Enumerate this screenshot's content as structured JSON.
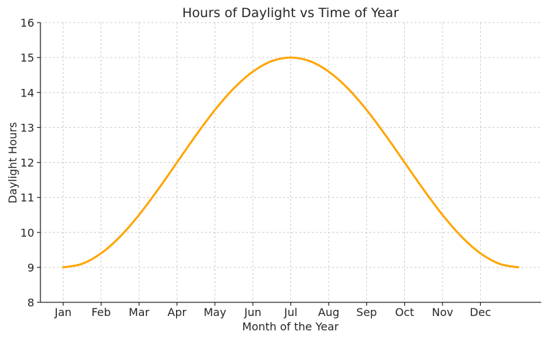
{
  "chart_data": {
    "type": "line",
    "title": "Hours of Daylight vs Time of Year",
    "xlabel": "Month of the Year",
    "ylabel": "Daylight Hours",
    "xlim": [
      0.4,
      13.6
    ],
    "ylim": [
      8,
      16
    ],
    "x_ticks": [
      1,
      2,
      3,
      4,
      5,
      6,
      7,
      8,
      9,
      10,
      11,
      12
    ],
    "x_tick_labels": [
      "Jan",
      "Feb",
      "Mar",
      "Apr",
      "May",
      "Jun",
      "Jul",
      "Aug",
      "Sep",
      "Oct",
      "Nov",
      "Dec"
    ],
    "y_ticks": [
      8,
      9,
      10,
      11,
      12,
      13,
      14,
      15,
      16
    ],
    "grid": true,
    "line_color": "#FFA500",
    "series": [
      {
        "x": [
          1,
          1.5,
          2,
          2.5,
          3,
          3.5,
          4,
          4.5,
          5,
          5.5,
          6,
          6.5,
          7,
          7.5,
          8,
          8.5,
          9,
          9.5,
          10,
          10.5,
          11,
          11.5,
          12,
          12.5,
          13
        ],
        "y": [
          9.0,
          9.102,
          9.402,
          9.879,
          10.5,
          11.224,
          12.0,
          12.776,
          13.5,
          14.121,
          14.598,
          14.898,
          15.0,
          14.898,
          14.598,
          14.121,
          13.5,
          12.776,
          12.0,
          11.224,
          10.5,
          9.879,
          9.402,
          9.102,
          9.0
        ]
      }
    ]
  }
}
